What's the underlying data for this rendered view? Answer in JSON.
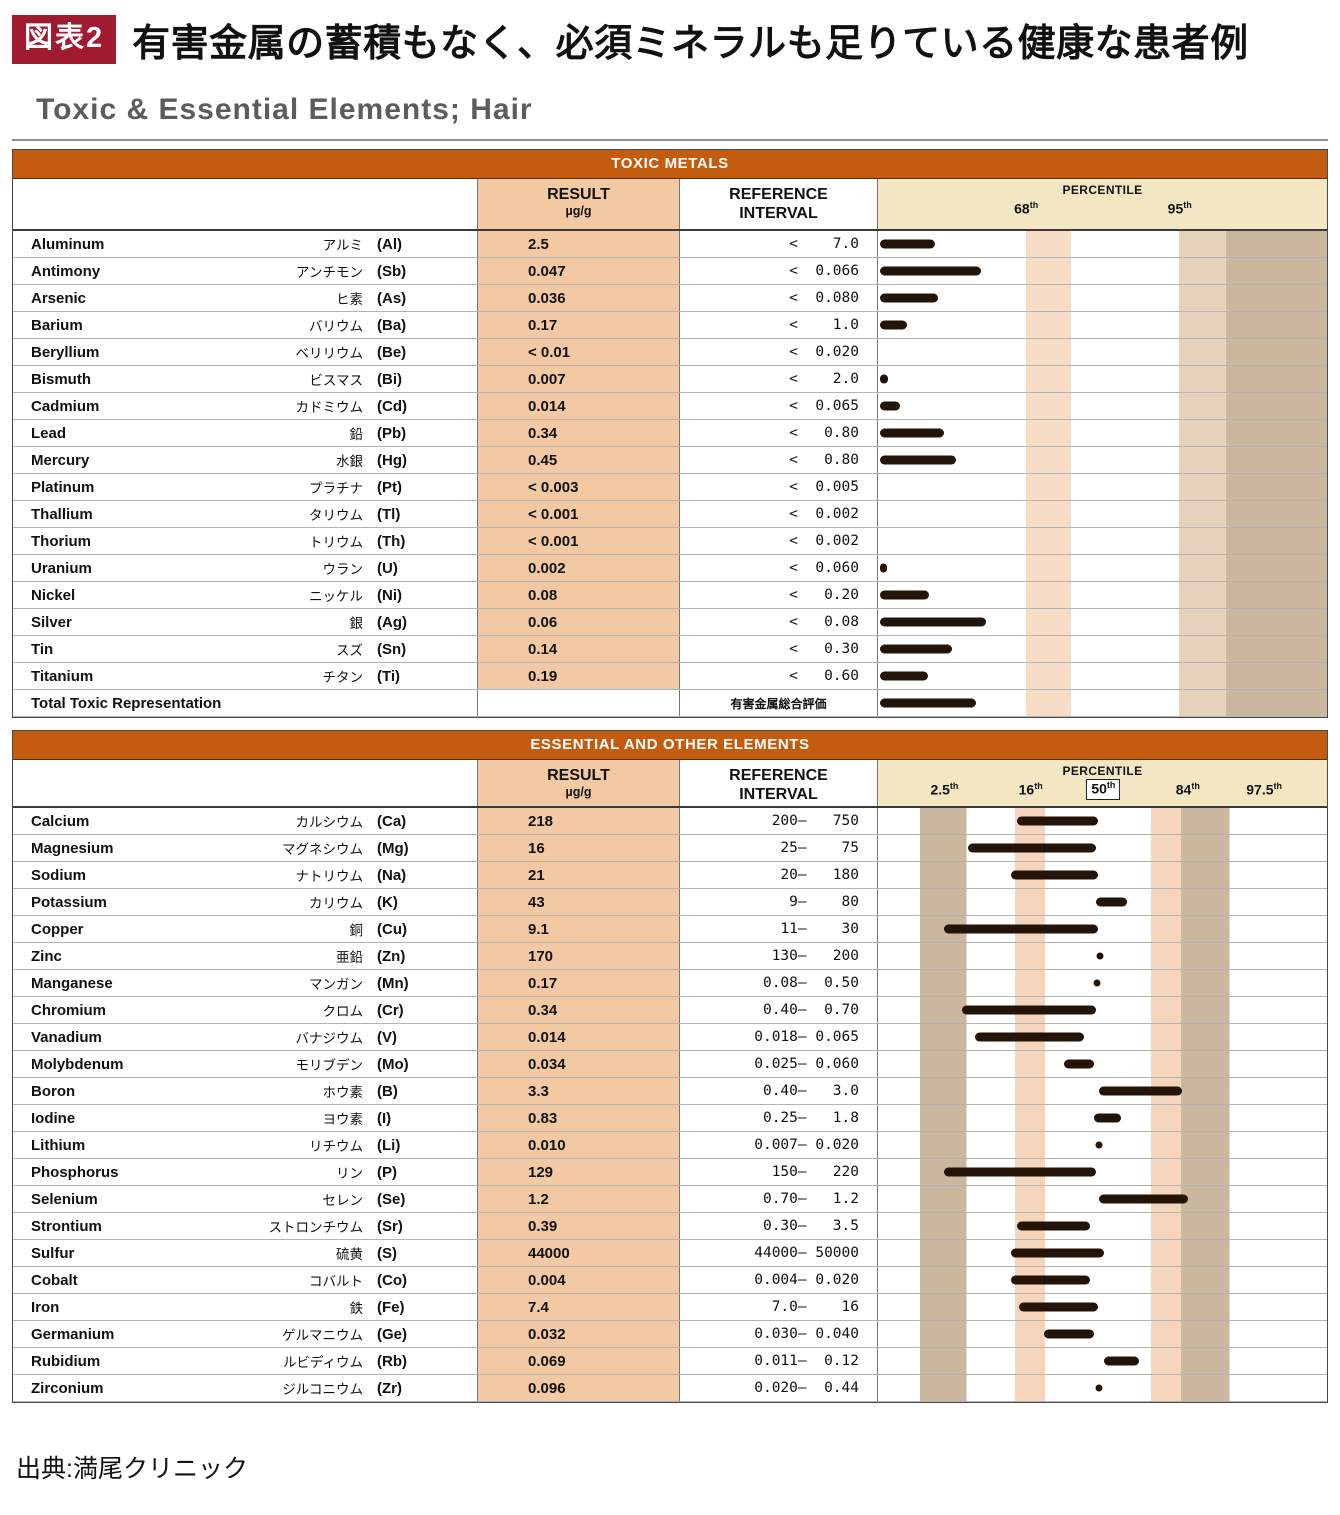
{
  "header": {
    "badge": "図表2",
    "title": "有害金属の蓄積もなく、必須ミネラルも足りている健康な患者例",
    "subtitle": "Toxic & Essential Elements; Hair"
  },
  "columns": {
    "result": "RESULT",
    "unit": "µg/g",
    "reference1": "REFERENCE",
    "reference2": "INTERVAL",
    "percentile": "PERCENTILE"
  },
  "toxic": {
    "section_title": "TOXIC METALS",
    "ticks": [
      {
        "num": "68",
        "sup": "th",
        "x": 33
      },
      {
        "num": "95",
        "sup": "th",
        "x": 67.2
      }
    ],
    "rows": [
      {
        "name": "Aluminum",
        "jp": "アルミ",
        "symbol": "(Al)",
        "result": "2.5",
        "reference": "<    7.0",
        "bar": 12.2
      },
      {
        "name": "Antimony",
        "jp": "アンチモン",
        "symbol": "(Sb)",
        "result": "0.047",
        "reference": "<  0.066",
        "bar": 22.6
      },
      {
        "name": "Arsenic",
        "jp": "ヒ素",
        "symbol": "(As)",
        "result": "0.036",
        "reference": "<  0.080",
        "bar": 13
      },
      {
        "name": "Barium",
        "jp": "バリウム",
        "symbol": "(Ba)",
        "result": "0.17",
        "reference": "<    1.0",
        "bar": 6
      },
      {
        "name": "Beryllium",
        "jp": "ベリリウム",
        "symbol": "(Be)",
        "result": "< 0.01",
        "reference": "<  0.020",
        "bar": 0
      },
      {
        "name": "Bismuth",
        "jp": "ビスマス",
        "symbol": "(Bi)",
        "result": "0.007",
        "reference": "<    2.0",
        "bar": 1.8
      },
      {
        "name": "Cadmium",
        "jp": "カドミウム",
        "symbol": "(Cd)",
        "result": "0.014",
        "reference": "<  0.065",
        "bar": 4.5
      },
      {
        "name": "Lead",
        "jp": "鉛",
        "symbol": "(Pb)",
        "result": "0.34",
        "reference": "<   0.80",
        "bar": 14.4
      },
      {
        "name": "Mercury",
        "jp": "水銀",
        "symbol": "(Hg)",
        "result": "0.45",
        "reference": "<   0.80",
        "bar": 17
      },
      {
        "name": "Platinum",
        "jp": "プラチナ",
        "symbol": "(Pt)",
        "result": "< 0.003",
        "reference": "<  0.005",
        "bar": 0
      },
      {
        "name": "Thallium",
        "jp": "タリウム",
        "symbol": "(Tl)",
        "result": "< 0.001",
        "reference": "<  0.002",
        "bar": 0
      },
      {
        "name": "Thorium",
        "jp": "トリウム",
        "symbol": "(Th)",
        "result": "< 0.001",
        "reference": "<  0.002",
        "bar": 0
      },
      {
        "name": "Uranium",
        "jp": "ウラン",
        "symbol": "(U)",
        "result": "0.002",
        "reference": "<  0.060",
        "bar": 1.5
      },
      {
        "name": "Nickel",
        "jp": "ニッケル",
        "symbol": "(Ni)",
        "result": "0.08",
        "reference": "<   0.20",
        "bar": 11
      },
      {
        "name": "Silver",
        "jp": "銀",
        "symbol": "(Ag)",
        "result": "0.06",
        "reference": "<   0.08",
        "bar": 23.7
      },
      {
        "name": "Tin",
        "jp": "スズ",
        "symbol": "(Sn)",
        "result": "0.14",
        "reference": "<   0.30",
        "bar": 16
      },
      {
        "name": "Titanium",
        "jp": "チタン",
        "symbol": "(Ti)",
        "result": "0.19",
        "reference": "<   0.60",
        "bar": 10.8
      }
    ],
    "total": {
      "label": "Total Toxic Representation",
      "note": "有害金属総合評価",
      "bar": 21.5
    }
  },
  "essential": {
    "section_title": "ESSENTIAL AND OTHER ELEMENTS",
    "ticks": [
      {
        "num": "2.5",
        "sup": "th",
        "x": 14.8
      },
      {
        "num": "16",
        "sup": "th",
        "x": 34
      },
      {
        "num": "50",
        "sup": "th",
        "x": 50.2,
        "boxed": true
      },
      {
        "num": "84",
        "sup": "th",
        "x": 69
      },
      {
        "num": "97.5",
        "sup": "th",
        "x": 86
      }
    ],
    "rows": [
      {
        "name": "Calcium",
        "jp": "カルシウム",
        "symbol": "(Ca)",
        "result": "218",
        "reference": "  200–   750",
        "bar": {
          "from": 31,
          "to": 49
        }
      },
      {
        "name": "Magnesium",
        "jp": "マグネシウム",
        "symbol": "(Mg)",
        "result": "16",
        "reference": "   25–    75",
        "bar": {
          "from": 20,
          "to": 48.5
        }
      },
      {
        "name": "Sodium",
        "jp": "ナトリウム",
        "symbol": "(Na)",
        "result": "21",
        "reference": "   20–   180",
        "bar": {
          "from": 29.6,
          "to": 49
        }
      },
      {
        "name": "Potassium",
        "jp": "カリウム",
        "symbol": "(K)",
        "result": "43",
        "reference": "    9–    80",
        "bar": {
          "from": 48.5,
          "to": 55.5
        }
      },
      {
        "name": "Copper",
        "jp": "銅",
        "symbol": "(Cu)",
        "result": "9.1",
        "reference": "   11–    30",
        "bar": {
          "from": 14.8,
          "to": 49
        }
      },
      {
        "name": "Zinc",
        "jp": "亜鉛",
        "symbol": "(Zn)",
        "result": "170",
        "reference": "  130–   200",
        "bar": {
          "dot": 49.5
        }
      },
      {
        "name": "Manganese",
        "jp": "マンガン",
        "symbol": "(Mn)",
        "result": "0.17",
        "reference": " 0.08–  0.50",
        "bar": {
          "dot": 48.8
        }
      },
      {
        "name": "Chromium",
        "jp": "クロム",
        "symbol": "(Cr)",
        "result": "0.34",
        "reference": " 0.40–  0.70",
        "bar": {
          "from": 18.8,
          "to": 48.5
        }
      },
      {
        "name": "Vanadium",
        "jp": "バナジウム",
        "symbol": "(V)",
        "result": "0.014",
        "reference": "0.018– 0.065",
        "bar": {
          "from": 21.5,
          "to": 45.8
        }
      },
      {
        "name": "Molybdenum",
        "jp": "モリブデン",
        "symbol": "(Mo)",
        "result": "0.034",
        "reference": "0.025– 0.060",
        "bar": {
          "from": 41.4,
          "to": 48
        }
      },
      {
        "name": "Boron",
        "jp": "ホウ素",
        "symbol": "(B)",
        "result": "3.3",
        "reference": " 0.40–   3.0",
        "bar": {
          "from": 49.2,
          "to": 67.8
        }
      },
      {
        "name": "Iodine",
        "jp": "ヨウ素",
        "symbol": "(I)",
        "result": "0.83",
        "reference": " 0.25–   1.8",
        "bar": {
          "from": 48,
          "to": 54.2
        }
      },
      {
        "name": "Lithium",
        "jp": "リチウム",
        "symbol": "(Li)",
        "result": "0.010",
        "reference": "0.007– 0.020",
        "bar": {
          "dot": 49.2
        }
      },
      {
        "name": "Phosphorus",
        "jp": "リン",
        "symbol": "(P)",
        "result": "129",
        "reference": "  150–   220",
        "bar": {
          "from": 14.8,
          "to": 48.5
        }
      },
      {
        "name": "Selenium",
        "jp": "セレン",
        "symbol": "(Se)",
        "result": "1.2",
        "reference": " 0.70–   1.2",
        "bar": {
          "from": 49.2,
          "to": 69
        }
      },
      {
        "name": "Strontium",
        "jp": "ストロンチウム",
        "symbol": "(Sr)",
        "result": "0.39",
        "reference": " 0.30–   3.5",
        "bar": {
          "from": 31,
          "to": 47.3
        }
      },
      {
        "name": "Sulfur",
        "jp": "硫黄",
        "symbol": "(S)",
        "result": "44000",
        "reference": "44000– 50000",
        "bar": {
          "from": 29.6,
          "to": 50.4
        }
      },
      {
        "name": "Cobalt",
        "jp": "コバルト",
        "symbol": "(Co)",
        "result": "0.004",
        "reference": "0.004– 0.020",
        "bar": {
          "from": 29.6,
          "to": 47.3
        }
      },
      {
        "name": "Iron",
        "jp": "鉄",
        "symbol": "(Fe)",
        "result": "7.4",
        "reference": "  7.0–    16",
        "bar": {
          "from": 31.4,
          "to": 49
        }
      },
      {
        "name": "Germanium",
        "jp": "ゲルマニウム",
        "symbol": "(Ge)",
        "result": "0.032",
        "reference": "0.030– 0.040",
        "bar": {
          "from": 37,
          "to": 48
        }
      },
      {
        "name": "Rubidium",
        "jp": "ルビディウム",
        "symbol": "(Rb)",
        "result": "0.069",
        "reference": "0.011–  0.12",
        "bar": {
          "from": 50.4,
          "to": 58.2
        }
      },
      {
        "name": "Zirconium",
        "jp": "ジルコニウム",
        "symbol": "(Zr)",
        "result": "0.096",
        "reference": "0.020–  0.44",
        "bar": {
          "dot": 49.2
        }
      }
    ]
  },
  "footer": {
    "source": "出典:満尾クリニック"
  },
  "colors": {
    "accent_orange": "#c45c10",
    "result_column": "#f2c9a3",
    "percentile_header": "#f3e7c3",
    "badge_red": "#a01b30",
    "bar_color": "#241307"
  }
}
